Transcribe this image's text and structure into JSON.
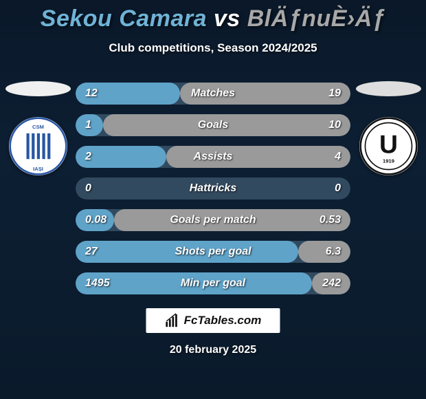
{
  "header": {
    "player1": "Sekou Camara",
    "vs": "vs",
    "player2": "BlÄƒnuÈ›Äƒ",
    "player1_color": "#6fb3d6",
    "vs_color": "#ffffff",
    "player2_color": "#a8a8a8",
    "subtitle": "Club competitions, Season 2024/2025"
  },
  "teams": {
    "left": {
      "ellipse_color": "#f0f0f0",
      "badge_bg": "#ffffff",
      "badge_stripes": "#2856a3",
      "badge_text1": "CSM",
      "badge_text2": "IAȘI"
    },
    "right": {
      "ellipse_color": "#dedede",
      "badge_bg": "#ffffff",
      "badge_letter": "U",
      "badge_sub": "1919"
    }
  },
  "stats": {
    "track_color": "#324a5f",
    "fill_left_color": "#5fa3c9",
    "fill_right_color": "#9a9a9a",
    "label_color": "#ffffff",
    "rows": [
      {
        "label": "Matches",
        "left": "12",
        "right": "19",
        "lw": 38,
        "rw": 62
      },
      {
        "label": "Goals",
        "left": "1",
        "right": "10",
        "lw": 10,
        "rw": 90
      },
      {
        "label": "Assists",
        "left": "2",
        "right": "4",
        "lw": 33,
        "rw": 67
      },
      {
        "label": "Hattricks",
        "left": "0",
        "right": "0",
        "lw": 0,
        "rw": 0
      },
      {
        "label": "Goals per match",
        "left": "0.08",
        "right": "0.53",
        "lw": 14,
        "rw": 86
      },
      {
        "label": "Shots per goal",
        "left": "27",
        "right": "6.3",
        "lw": 81,
        "rw": 19
      },
      {
        "label": "Min per goal",
        "left": "1495",
        "right": "242",
        "lw": 86,
        "rw": 14
      }
    ]
  },
  "footer": {
    "brand": "FcTables.com",
    "date": "20 february 2025"
  }
}
